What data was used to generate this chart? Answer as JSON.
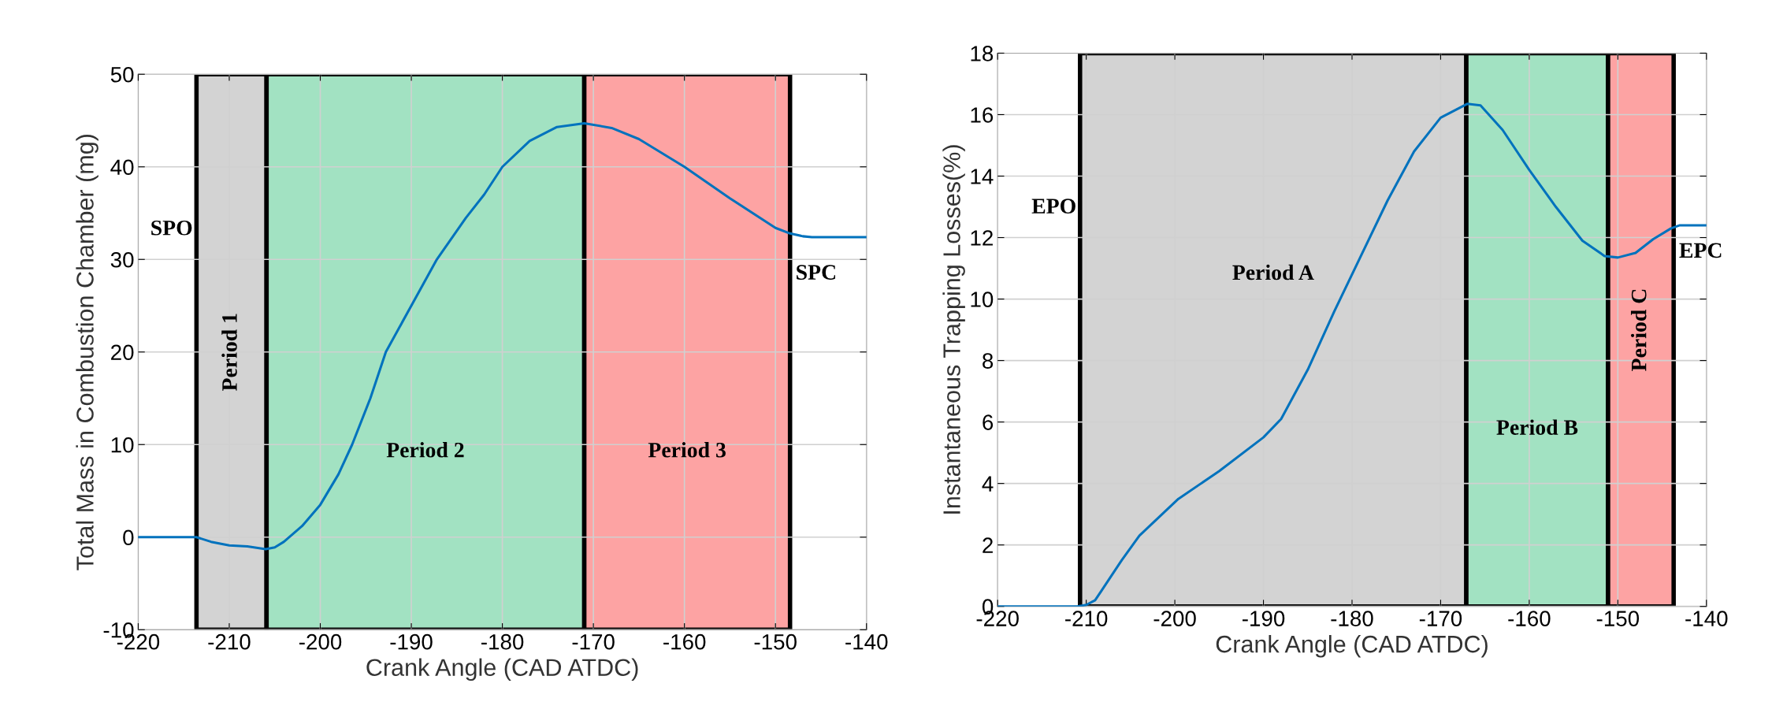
{
  "chart_data": [
    {
      "type": "line",
      "xlabel": "Crank Angle (CAD ATDC)",
      "ylabel": "Total Mass in Combustion Chamber (mg)",
      "xlim": [
        -220,
        -140
      ],
      "ylim": [
        -10,
        50
      ],
      "xticks": [
        -220,
        -210,
        -200,
        -190,
        -180,
        -170,
        -160,
        -150,
        -140
      ],
      "yticks": [
        -10,
        0,
        10,
        20,
        30,
        40,
        50
      ],
      "grid": true,
      "legend": false,
      "series": [
        {
          "color": "#0072bd",
          "x": [
            -220,
            -216,
            -213.6,
            -212,
            -210,
            -208,
            -206,
            -205,
            -204,
            -202,
            -200,
            -198,
            -196.5,
            -194.5,
            -192.8,
            -190,
            -187.2,
            -184,
            -182,
            -180,
            -177,
            -174,
            -171,
            -168,
            -165,
            -160,
            -155,
            -150,
            -148.4,
            -147,
            -146,
            -140
          ],
          "values": [
            0,
            0,
            0,
            -0.5,
            -0.9,
            -1.0,
            -1.3,
            -1.1,
            -0.5,
            1.2,
            3.5,
            6.8,
            10,
            15,
            20,
            25,
            30,
            34.5,
            37,
            40,
            42.8,
            44.3,
            44.7,
            44.2,
            43,
            40,
            36.6,
            33.4,
            32.8,
            32.5,
            32.4,
            32.4
          ]
        }
      ],
      "bands": [
        {
          "axis": "x",
          "from": -213.6,
          "to": -205.9,
          "label": "Period 1",
          "color": "#d3d3d3"
        },
        {
          "axis": "x",
          "from": -205.9,
          "to": -171,
          "label": "Period 2",
          "color": "#a2e2c2"
        },
        {
          "axis": "x",
          "from": -171,
          "to": -148.4,
          "label": "Period 3",
          "color": "#fda3a3"
        }
      ],
      "annotations": [
        "SPO",
        "SPC"
      ]
    },
    {
      "type": "line",
      "xlabel": "Crank Angle (CAD ATDC)",
      "ylabel": "Instantaneous Trapping Losses(%)",
      "xlim": [
        -220,
        -140
      ],
      "ylim": [
        0,
        18
      ],
      "xticks": [
        -220,
        -210,
        -200,
        -190,
        -180,
        -170,
        -160,
        -150,
        -140
      ],
      "yticks": [
        0,
        2,
        4,
        6,
        8,
        10,
        12,
        14,
        16,
        18
      ],
      "grid": true,
      "legend": false,
      "series": [
        {
          "color": "#0072bd",
          "x": [
            -220,
            -215,
            -211,
            -210,
            -209,
            -208.3,
            -206,
            -204,
            -199.6,
            -195,
            -190,
            -188,
            -185,
            -182,
            -179,
            -176,
            -173,
            -170,
            -167,
            -165.5,
            -163,
            -160,
            -157,
            -154,
            -151.5,
            -150,
            -148,
            -146,
            -144,
            -143,
            -140
          ],
          "values": [
            0,
            0,
            0,
            0.05,
            0.2,
            0.5,
            1.5,
            2.3,
            3.5,
            4.4,
            5.5,
            6.1,
            7.7,
            9.6,
            11.4,
            13.2,
            14.8,
            15.9,
            16.35,
            16.3,
            15.5,
            14.2,
            13.0,
            11.9,
            11.4,
            11.35,
            11.5,
            11.95,
            12.3,
            12.4,
            12.4
          ]
        }
      ],
      "bands": [
        {
          "axis": "x",
          "from": -210.7,
          "to": -167.1,
          "label": "Period A",
          "color": "#d3d3d3"
        },
        {
          "axis": "x",
          "from": -167.1,
          "to": -151.1,
          "label": "Period B",
          "color": "#a2e2c2"
        },
        {
          "axis": "x",
          "from": -151.1,
          "to": -143.7,
          "label": "Period C",
          "color": "#fda3a3"
        }
      ],
      "annotations": [
        "EPO",
        "EPC"
      ]
    }
  ]
}
